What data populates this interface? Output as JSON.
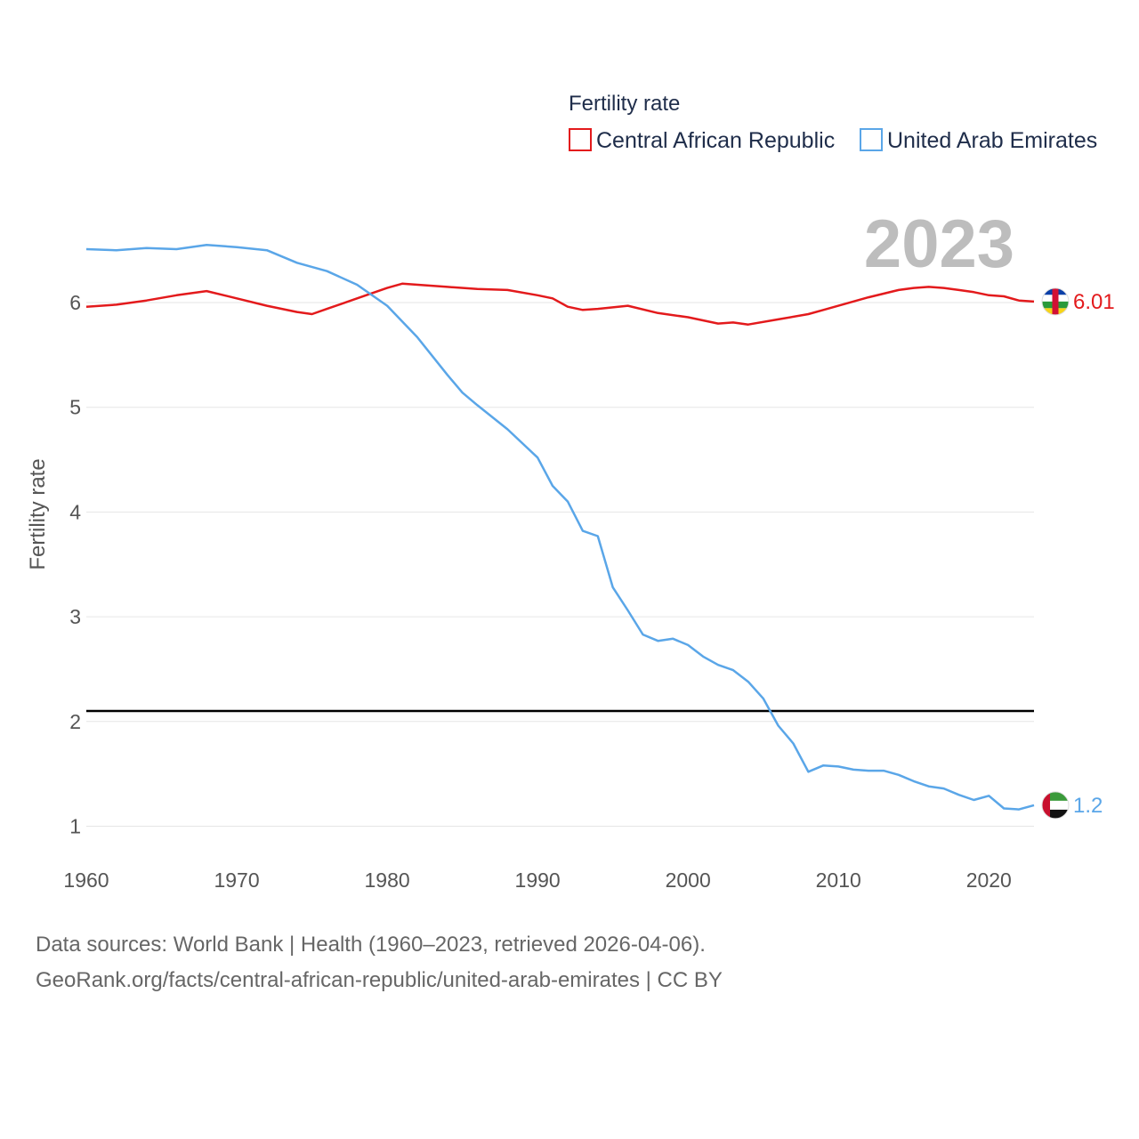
{
  "chart_data": {
    "type": "line",
    "legend_title": "Fertility rate",
    "ylabel": "Fertility rate",
    "xlabel": "",
    "xlim": [
      1960,
      2023
    ],
    "ylim": [
      0.8,
      6.85
    ],
    "x_ticks": [
      1960,
      1970,
      1980,
      1990,
      2000,
      2010,
      2020
    ],
    "y_ticks": [
      1,
      2,
      3,
      4,
      5,
      6
    ],
    "grid": true,
    "legend_position": "top-right",
    "highlight_year": "2023",
    "reference_line": {
      "y": 2.1,
      "color": "#000000"
    },
    "series": [
      {
        "name": "Central African Republic",
        "color": "#e31a1c",
        "end_label": "6.01",
        "flag_icon": "central-african-republic-flag-icon",
        "x": [
          1960,
          1962,
          1964,
          1966,
          1968,
          1970,
          1972,
          1974,
          1975,
          1976,
          1978,
          1980,
          1981,
          1984,
          1986,
          1988,
          1990,
          1991,
          1992,
          1993,
          1994,
          1996,
          1998,
          2000,
          2002,
          2003,
          2004,
          2006,
          2008,
          2009,
          2010,
          2012,
          2014,
          2015,
          2016,
          2017,
          2018,
          2019,
          2020,
          2021,
          2022,
          2023
        ],
        "y": [
          5.96,
          5.98,
          6.02,
          6.07,
          6.11,
          6.04,
          5.97,
          5.91,
          5.89,
          5.94,
          6.04,
          6.14,
          6.18,
          6.15,
          6.13,
          6.12,
          6.07,
          6.04,
          5.96,
          5.93,
          5.94,
          5.97,
          5.9,
          5.86,
          5.8,
          5.81,
          5.79,
          5.84,
          5.89,
          5.93,
          5.97,
          6.05,
          6.12,
          6.14,
          6.15,
          6.14,
          6.12,
          6.1,
          6.07,
          6.06,
          6.02,
          6.01
        ]
      },
      {
        "name": "United Arab Emirates",
        "color": "#5aa6e8",
        "end_label": "1.2",
        "flag_icon": "united-arab-emirates-flag-icon",
        "x": [
          1960,
          1962,
          1964,
          1966,
          1968,
          1970,
          1972,
          1974,
          1976,
          1978,
          1980,
          1982,
          1984,
          1985,
          1986,
          1988,
          1990,
          1991,
          1992,
          1993,
          1994,
          1995,
          1996,
          1997,
          1998,
          1999,
          2000,
          2001,
          2002,
          2003,
          2004,
          2005,
          2006,
          2007,
          2008,
          2009,
          2010,
          2011,
          2012,
          2013,
          2014,
          2015,
          2016,
          2017,
          2018,
          2019,
          2020,
          2021,
          2022,
          2023
        ],
        "y": [
          6.51,
          6.5,
          6.52,
          6.51,
          6.55,
          6.53,
          6.5,
          6.38,
          6.3,
          6.17,
          5.97,
          5.67,
          5.31,
          5.14,
          5.02,
          4.79,
          4.52,
          4.25,
          4.1,
          3.82,
          3.77,
          3.28,
          3.06,
          2.83,
          2.77,
          2.79,
          2.73,
          2.62,
          2.54,
          2.49,
          2.38,
          2.22,
          1.96,
          1.79,
          1.52,
          1.58,
          1.57,
          1.54,
          1.53,
          1.53,
          1.49,
          1.43,
          1.38,
          1.36,
          1.3,
          1.25,
          1.29,
          1.17,
          1.16,
          1.2
        ]
      }
    ]
  },
  "footer": {
    "line1": "Data sources: World Bank | Health (1960–2023, retrieved 2026-04-06).",
    "line2": "GeoRank.org/facts/central-african-republic/united-arab-emirates | CC BY"
  }
}
